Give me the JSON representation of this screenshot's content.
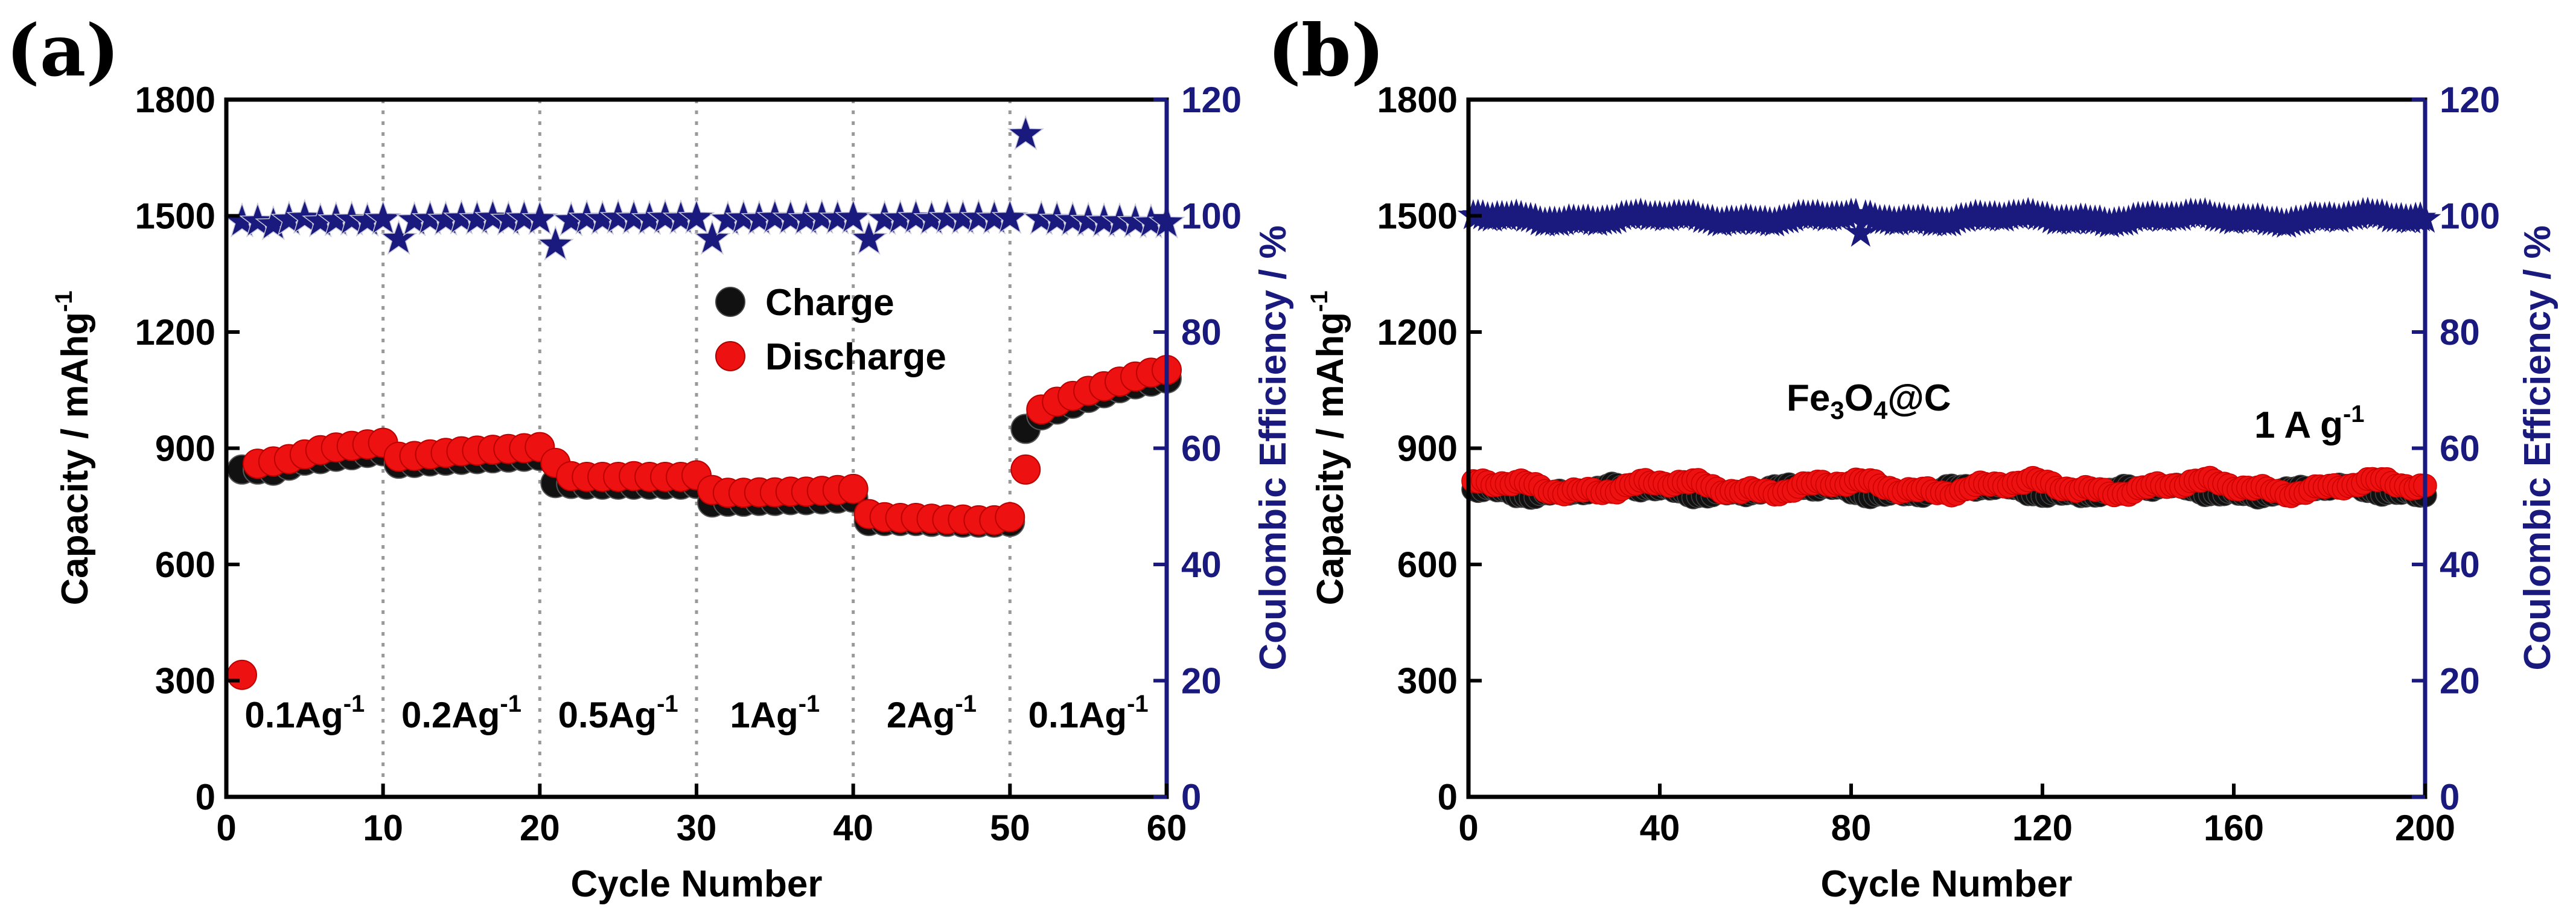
{
  "chart_data": [
    {
      "type": "scatter",
      "panel_label": "(a)",
      "xlabel": "Cycle Number",
      "ylabel": "Capacity / mAhg",
      "ylabel_sup": "-1",
      "y2label": "Coulombic Efficiency / %",
      "xlim": [
        0,
        60
      ],
      "ylim": [
        0,
        1800
      ],
      "y2lim": [
        0,
        120
      ],
      "xticks": [
        "0",
        "10",
        "20",
        "30",
        "40",
        "50",
        "60"
      ],
      "yticks": [
        "0",
        "300",
        "600",
        "900",
        "1200",
        "1500",
        "1800"
      ],
      "y2ticks": [
        "0",
        "20",
        "40",
        "60",
        "80",
        "100",
        "120"
      ],
      "dividers": [
        10,
        20,
        30,
        40,
        50
      ],
      "rate_labels": [
        {
          "text": "0.1Ag",
          "sup": "-1",
          "x": 5
        },
        {
          "text": "0.2Ag",
          "sup": "-1",
          "x": 15
        },
        {
          "text": "0.5Ag",
          "sup": "-1",
          "x": 25
        },
        {
          "text": "1Ag",
          "sup": "-1",
          "x": 35
        },
        {
          "text": "2Ag",
          "sup": "-1",
          "x": 45
        },
        {
          "text": "0.1Ag",
          "sup": "-1",
          "x": 55
        }
      ],
      "legend": {
        "position": "center-right",
        "entries": [
          "Charge",
          "Discharge"
        ]
      },
      "series": [
        {
          "name": "Charge",
          "color": "#111111",
          "x": [
            1,
            2,
            3,
            4,
            5,
            6,
            7,
            8,
            9,
            10,
            11,
            12,
            13,
            14,
            15,
            16,
            17,
            18,
            19,
            20,
            21,
            22,
            23,
            24,
            25,
            26,
            27,
            28,
            29,
            30,
            31,
            32,
            33,
            34,
            35,
            36,
            37,
            38,
            39,
            40,
            41,
            42,
            43,
            44,
            45,
            46,
            47,
            48,
            49,
            50,
            51,
            52,
            53,
            54,
            55,
            56,
            57,
            58,
            59,
            60
          ],
          "values": [
            845,
            845,
            842,
            855,
            868,
            872,
            878,
            882,
            888,
            892,
            860,
            862,
            866,
            868,
            870,
            872,
            874,
            876,
            878,
            880,
            810,
            808,
            806,
            806,
            806,
            806,
            806,
            806,
            806,
            808,
            760,
            762,
            762,
            764,
            764,
            766,
            766,
            768,
            770,
            772,
            712,
            712,
            712,
            712,
            710,
            710,
            708,
            708,
            708,
            710,
            950,
            985,
            1000,
            1015,
            1030,
            1042,
            1055,
            1065,
            1072,
            1080
          ]
        },
        {
          "name": "Discharge",
          "color": "#ee1111",
          "x": [
            1,
            2,
            3,
            4,
            5,
            6,
            7,
            8,
            9,
            10,
            11,
            12,
            13,
            14,
            15,
            16,
            17,
            18,
            19,
            20,
            21,
            22,
            23,
            24,
            25,
            26,
            27,
            28,
            29,
            30,
            31,
            32,
            33,
            34,
            35,
            36,
            37,
            38,
            39,
            40,
            41,
            42,
            43,
            44,
            45,
            46,
            47,
            48,
            49,
            50,
            51,
            52,
            53,
            54,
            55,
            56,
            57,
            58,
            59,
            60
          ],
          "values": [
            315,
            860,
            866,
            872,
            884,
            895,
            902,
            906,
            910,
            914,
            878,
            880,
            884,
            888,
            892,
            894,
            896,
            898,
            900,
            903,
            862,
            828,
            826,
            826,
            826,
            828,
            826,
            826,
            826,
            830,
            792,
            785,
            785,
            786,
            786,
            788,
            788,
            790,
            792,
            795,
            730,
            722,
            720,
            720,
            718,
            716,
            716,
            714,
            714,
            722,
            845,
            1000,
            1020,
            1035,
            1048,
            1060,
            1072,
            1085,
            1095,
            1102
          ]
        },
        {
          "name": "Coulombic Efficiency",
          "axis": "right",
          "color": "#1a1a7e",
          "x": [
            1,
            2,
            3,
            4,
            5,
            6,
            7,
            8,
            9,
            10,
            11,
            12,
            13,
            14,
            15,
            16,
            17,
            18,
            19,
            20,
            21,
            22,
            23,
            24,
            25,
            26,
            27,
            28,
            29,
            30,
            31,
            32,
            33,
            34,
            35,
            36,
            37,
            38,
            39,
            40,
            41,
            42,
            43,
            44,
            45,
            46,
            47,
            48,
            49,
            50,
            51,
            52,
            53,
            54,
            55,
            56,
            57,
            58,
            59,
            60
          ],
          "values": [
            99,
            99,
            98.5,
            99.3,
            99.6,
            99.0,
            99.2,
            99.3,
            99.1,
            99.4,
            96,
            99.2,
            99.4,
            99.3,
            99.5,
            99.4,
            99.6,
            99.3,
            99.5,
            99.4,
            95,
            99.2,
            99.5,
            99.4,
            99.6,
            99.5,
            99.4,
            99.6,
            99.5,
            99.6,
            96,
            99.3,
            99.5,
            99.4,
            99.6,
            99.5,
            99.4,
            99.6,
            99.5,
            99.6,
            96,
            99.4,
            99.5,
            99.6,
            99.4,
            99.6,
            99.5,
            99.6,
            99.5,
            99.6,
            114,
            99.4,
            99.3,
            99.2,
            99.1,
            99.0,
            99.0,
            98.9,
            98.8,
            98.8
          ]
        }
      ]
    },
    {
      "type": "scatter",
      "panel_label": "(b)",
      "xlabel": "Cycle Number",
      "ylabel": "Capacity / mAhg",
      "ylabel_sup": "-1",
      "y2label": "Coulombic Efficiency / %",
      "xlim": [
        0,
        200
      ],
      "ylim": [
        0,
        1800
      ],
      "y2lim": [
        0,
        120
      ],
      "xticks": [
        "0",
        "40",
        "80",
        "120",
        "160",
        "200"
      ],
      "yticks": [
        "0",
        "300",
        "600",
        "900",
        "1200",
        "1500",
        "1800"
      ],
      "y2ticks": [
        "0",
        "20",
        "40",
        "60",
        "80",
        "100",
        "120"
      ],
      "annotations": [
        {
          "text": "Fe",
          "sub1": "3",
          "mid": "O",
          "sub2": "4",
          "tail": "@C"
        },
        {
          "text": "1 A g",
          "sup": "-1"
        }
      ],
      "series": [
        {
          "name": "Charge",
          "color": "#111111",
          "x_range": [
            1,
            200
          ],
          "approx_value": 790,
          "fluctuation": 20
        },
        {
          "name": "Discharge",
          "color": "#ee1111",
          "x_range": [
            1,
            200
          ],
          "approx_value": 800,
          "fluctuation": 25
        },
        {
          "name": "Coulombic Efficiency",
          "axis": "right",
          "color": "#1a1a7e",
          "x_range": [
            1,
            200
          ],
          "approx_value": 99.5,
          "fluctuation": 1,
          "outliers": [
            {
              "x": 82,
              "y": 97
            }
          ]
        }
      ]
    }
  ]
}
